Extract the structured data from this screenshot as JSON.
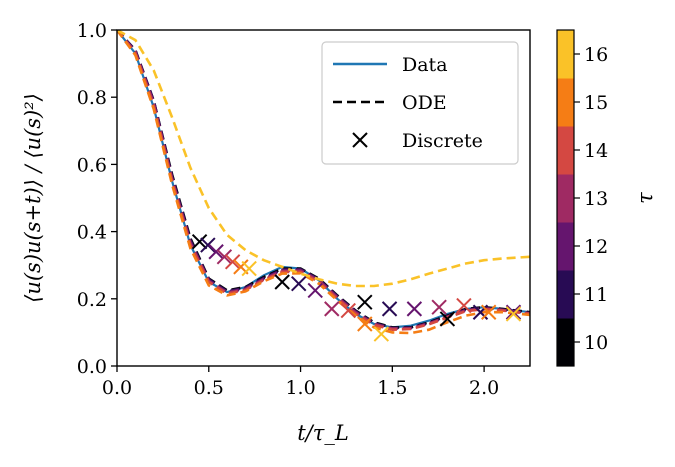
{
  "chart_data": {
    "type": "line",
    "title": "",
    "xlabel": "t/τ_L",
    "ylabel": "⟨u(s)u(s+t)⟩ / ⟨u(s)²⟩",
    "xlim": [
      0,
      2.25
    ],
    "ylim": [
      0,
      1.0
    ],
    "xticks": [
      0.0,
      0.5,
      1.0,
      1.5,
      2.0
    ],
    "xtick_labels": [
      "0.0",
      "0.5",
      "1.0",
      "1.5",
      "2.0"
    ],
    "yticks": [
      0.0,
      0.2,
      0.4,
      0.6,
      0.8,
      1.0
    ],
    "ytick_labels": [
      "0.0",
      "0.2",
      "0.4",
      "0.6",
      "0.8",
      "1.0"
    ],
    "grid": false,
    "legend_position": "top-right",
    "legend": [
      {
        "label": "Data",
        "style": "solid",
        "color": "#1f77b4"
      },
      {
        "label": "ODE",
        "style": "dashed",
        "color": "#000000"
      },
      {
        "label": "Discrete",
        "style": "marker-x",
        "color": "#000000"
      }
    ],
    "colorbar": {
      "label": "τ",
      "levels": [
        10,
        11,
        12,
        13,
        14,
        15,
        16
      ],
      "tick_labels": [
        "10",
        "11",
        "12",
        "13",
        "14",
        "15",
        "16"
      ],
      "colors": [
        "#000004",
        "#280b54",
        "#65156e",
        "#9f2a63",
        "#d44842",
        "#f57d15",
        "#fac228"
      ]
    },
    "data_curve": {
      "color": "#1f77b4",
      "x": [
        0,
        0.1,
        0.2,
        0.3,
        0.4,
        0.5,
        0.6,
        0.7,
        0.8,
        0.9,
        1.0,
        1.1,
        1.2,
        1.3,
        1.4,
        1.5,
        1.6,
        1.7,
        1.8,
        1.9,
        2.0,
        2.1,
        2.25
      ],
      "y": [
        1.0,
        0.93,
        0.77,
        0.55,
        0.36,
        0.25,
        0.22,
        0.235,
        0.27,
        0.295,
        0.29,
        0.255,
        0.2,
        0.155,
        0.125,
        0.115,
        0.12,
        0.135,
        0.155,
        0.17,
        0.175,
        0.17,
        0.16
      ]
    },
    "series": [
      {
        "name": "τ=10",
        "tau": 10,
        "color": "#000004",
        "ode_x": [
          0,
          0.1,
          0.2,
          0.3,
          0.4,
          0.5,
          0.6,
          0.7,
          0.8,
          0.9,
          1.0,
          1.1,
          1.2,
          1.3,
          1.4,
          1.5,
          1.6,
          1.7,
          1.8,
          1.9,
          2.0,
          2.1,
          2.25
        ],
        "ode_y": [
          1.0,
          0.94,
          0.79,
          0.57,
          0.38,
          0.26,
          0.225,
          0.235,
          0.265,
          0.29,
          0.29,
          0.26,
          0.21,
          0.165,
          0.13,
          0.115,
          0.115,
          0.13,
          0.15,
          0.17,
          0.175,
          0.17,
          0.16
        ],
        "discrete_x": [
          0.45,
          0.9,
          1.35,
          1.8
        ],
        "discrete_y": [
          0.37,
          0.25,
          0.19,
          0.14
        ]
      },
      {
        "name": "τ=11",
        "tau": 11,
        "color": "#280b54",
        "ode_x": [
          0,
          0.1,
          0.2,
          0.3,
          0.4,
          0.5,
          0.6,
          0.7,
          0.8,
          0.9,
          1.0,
          1.1,
          1.2,
          1.3,
          1.4,
          1.5,
          1.6,
          1.7,
          1.8,
          1.9,
          2.0,
          2.1,
          2.25
        ],
        "ode_y": [
          1.0,
          0.94,
          0.79,
          0.565,
          0.375,
          0.258,
          0.222,
          0.233,
          0.262,
          0.287,
          0.288,
          0.258,
          0.208,
          0.163,
          0.128,
          0.113,
          0.114,
          0.128,
          0.148,
          0.168,
          0.173,
          0.168,
          0.158
        ],
        "discrete_x": [
          0.495,
          0.99,
          1.485,
          1.98
        ],
        "discrete_y": [
          0.36,
          0.245,
          0.17,
          0.16
        ]
      },
      {
        "name": "τ=12",
        "tau": 12,
        "color": "#65156e",
        "ode_x": [
          0,
          0.1,
          0.2,
          0.3,
          0.4,
          0.5,
          0.6,
          0.7,
          0.8,
          0.9,
          1.0,
          1.1,
          1.2,
          1.3,
          1.4,
          1.5,
          1.6,
          1.7,
          1.8,
          1.9,
          2.0,
          2.1,
          2.25
        ],
        "ode_y": [
          1.0,
          0.935,
          0.785,
          0.56,
          0.37,
          0.255,
          0.22,
          0.23,
          0.26,
          0.285,
          0.286,
          0.256,
          0.206,
          0.161,
          0.126,
          0.112,
          0.113,
          0.127,
          0.147,
          0.166,
          0.172,
          0.167,
          0.157
        ],
        "discrete_x": [
          0.54,
          1.08,
          1.62,
          2.16
        ],
        "discrete_y": [
          0.34,
          0.225,
          0.17,
          0.16
        ]
      },
      {
        "name": "τ=13",
        "tau": 13,
        "color": "#9f2a63",
        "ode_x": [
          0,
          0.1,
          0.2,
          0.3,
          0.4,
          0.5,
          0.6,
          0.7,
          0.8,
          0.9,
          1.0,
          1.1,
          1.2,
          1.3,
          1.4,
          1.5,
          1.6,
          1.7,
          1.8,
          1.9,
          2.0,
          2.1,
          2.25
        ],
        "ode_y": [
          1.0,
          0.935,
          0.78,
          0.555,
          0.365,
          0.252,
          0.218,
          0.228,
          0.258,
          0.282,
          0.283,
          0.253,
          0.204,
          0.159,
          0.125,
          0.111,
          0.112,
          0.126,
          0.146,
          0.165,
          0.171,
          0.166,
          0.156
        ],
        "discrete_x": [
          0.585,
          1.17,
          1.755
        ],
        "discrete_y": [
          0.325,
          0.17,
          0.175
        ]
      },
      {
        "name": "τ=14",
        "tau": 14,
        "color": "#d44842",
        "ode_x": [
          0,
          0.1,
          0.2,
          0.3,
          0.4,
          0.5,
          0.6,
          0.7,
          0.8,
          0.9,
          1.0,
          1.1,
          1.2,
          1.3,
          1.4,
          1.5,
          1.6,
          1.7,
          1.8,
          1.9,
          2.0,
          2.1,
          2.25
        ],
        "ode_y": [
          1.0,
          0.93,
          0.775,
          0.55,
          0.36,
          0.25,
          0.215,
          0.226,
          0.256,
          0.28,
          0.28,
          0.25,
          0.2,
          0.155,
          0.122,
          0.108,
          0.11,
          0.124,
          0.144,
          0.163,
          0.169,
          0.165,
          0.155
        ],
        "discrete_x": [
          0.63,
          1.26,
          1.89
        ],
        "discrete_y": [
          0.31,
          0.165,
          0.18
        ]
      },
      {
        "name": "τ=15",
        "tau": 15,
        "color": "#f57d15",
        "ode_x": [
          0,
          0.1,
          0.2,
          0.3,
          0.4,
          0.5,
          0.6,
          0.7,
          0.8,
          0.9,
          1.0,
          1.1,
          1.2,
          1.3,
          1.4,
          1.5,
          1.6,
          1.7,
          1.8,
          1.9,
          2.0,
          2.1,
          2.25
        ],
        "ode_y": [
          1.0,
          0.925,
          0.765,
          0.54,
          0.35,
          0.24,
          0.21,
          0.222,
          0.252,
          0.275,
          0.276,
          0.245,
          0.195,
          0.15,
          0.115,
          0.1,
          0.098,
          0.108,
          0.13,
          0.15,
          0.16,
          0.16,
          0.152
        ],
        "discrete_x": [
          0.675,
          1.35,
          2.025
        ],
        "discrete_y": [
          0.295,
          0.125,
          0.16
        ]
      },
      {
        "name": "τ=16",
        "tau": 16,
        "color": "#fac228",
        "ode_x": [
          0,
          0.1,
          0.2,
          0.3,
          0.4,
          0.5,
          0.6,
          0.7,
          0.8,
          0.9,
          1.0,
          1.1,
          1.2,
          1.3,
          1.4,
          1.5,
          1.6,
          1.7,
          1.8,
          1.9,
          2.0,
          2.1,
          2.25
        ],
        "ode_y": [
          1.0,
          0.97,
          0.88,
          0.74,
          0.59,
          0.47,
          0.39,
          0.345,
          0.315,
          0.295,
          0.275,
          0.258,
          0.245,
          0.238,
          0.238,
          0.245,
          0.258,
          0.275,
          0.29,
          0.305,
          0.315,
          0.32,
          0.325
        ],
        "discrete_x": [
          0.72,
          1.44,
          2.16
        ],
        "discrete_y": [
          0.29,
          0.095,
          0.155
        ]
      }
    ]
  }
}
